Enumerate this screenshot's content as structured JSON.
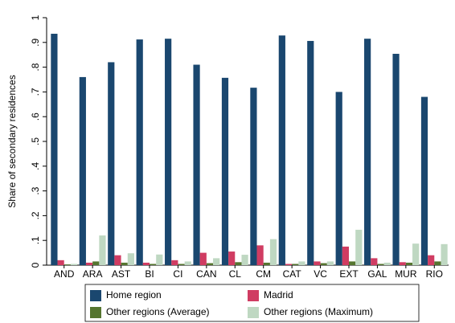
{
  "chart_data": {
    "type": "bar",
    "y_label": "Share of secondary residences",
    "categories": [
      "AND",
      "ARA",
      "AST",
      "BI",
      "CI",
      "CAN",
      "CL",
      "CM",
      "CAT",
      "VC",
      "EXT",
      "GAL",
      "MUR",
      "RIO"
    ],
    "series": [
      {
        "name": "Home region",
        "color": "#1a476f",
        "values": [
          0.935,
          0.76,
          0.82,
          0.912,
          0.915,
          0.81,
          0.757,
          0.717,
          0.928,
          0.906,
          0.7,
          0.915,
          0.854,
          0.68
        ]
      },
      {
        "name": "Madrid",
        "color": "#d03c62",
        "values": [
          0.02,
          0.01,
          0.04,
          0.01,
          0.02,
          0.05,
          0.055,
          0.08,
          0.005,
          0.015,
          0.075,
          0.028,
          0.012,
          0.04
        ]
      },
      {
        "name": "Other regions (Average)",
        "color": "#55752f",
        "values": [
          0.003,
          0.015,
          0.01,
          0.005,
          0.005,
          0.008,
          0.012,
          0.01,
          0.005,
          0.008,
          0.015,
          0.005,
          0.01,
          0.015
        ]
      },
      {
        "name": "Other regions (Maximum)",
        "color": "#bfd8c2",
        "values": [
          0.005,
          0.12,
          0.048,
          0.043,
          0.015,
          0.028,
          0.042,
          0.105,
          0.015,
          0.015,
          0.143,
          0.01,
          0.087,
          0.085
        ]
      }
    ],
    "ylim": [
      0,
      1
    ],
    "yticks": [
      0,
      {
        "value": 0.1,
        "label": ".1"
      },
      {
        "value": 0.2,
        "label": ".2"
      },
      {
        "value": 0.3,
        "label": ".3"
      },
      {
        "value": 0.4,
        "label": ".4"
      },
      {
        "value": 0.5,
        "label": ".5"
      },
      {
        "value": 0.6,
        "label": ".6"
      },
      {
        "value": 0.7,
        "label": ".7"
      },
      {
        "value": 0.8,
        "label": ".8"
      },
      {
        "value": 0.9,
        "label": ".9"
      },
      1
    ]
  }
}
